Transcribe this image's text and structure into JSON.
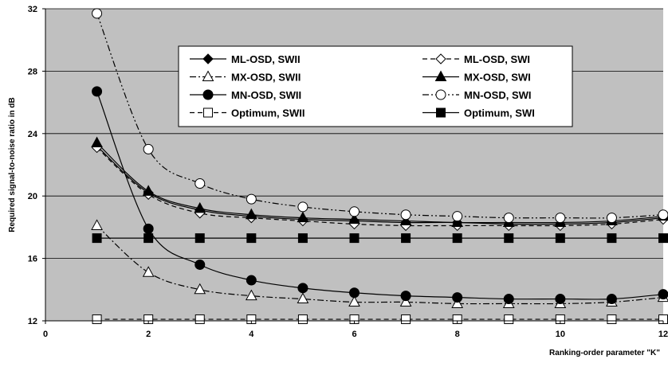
{
  "chart_data": {
    "type": "line",
    "xlabel": "Ranking-order parameter \"K\"",
    "ylabel": "Required signal-to-noise ratio in dB",
    "xlim": [
      0,
      12
    ],
    "ylim": [
      12,
      32
    ],
    "x_ticks": [
      0,
      2,
      4,
      6,
      8,
      10,
      12
    ],
    "y_ticks": [
      12,
      16,
      20,
      24,
      28,
      32
    ],
    "grid": "horizontal",
    "plot_background": "#c0c0c0",
    "legend_position": "top-center",
    "x": [
      1,
      2,
      3,
      4,
      5,
      6,
      7,
      8,
      9,
      10,
      11,
      12
    ],
    "series": [
      {
        "name": "ML-OSD, SWII",
        "marker": "diamond",
        "fill": "filled",
        "dash": "solid",
        "values": [
          23.2,
          20.2,
          19.1,
          18.7,
          18.5,
          18.4,
          18.3,
          18.3,
          18.2,
          18.2,
          18.3,
          18.6
        ]
      },
      {
        "name": "ML-OSD, SWI",
        "marker": "diamond",
        "fill": "open",
        "dash": "dashed",
        "values": [
          23.1,
          20.1,
          18.9,
          18.6,
          18.4,
          18.2,
          18.1,
          18.1,
          18.1,
          18.1,
          18.2,
          18.5
        ]
      },
      {
        "name": "MX-OSD, SWII",
        "marker": "triangle",
        "fill": "open",
        "dash": "dashdot",
        "values": [
          18.1,
          15.1,
          14.0,
          13.6,
          13.4,
          13.2,
          13.2,
          13.1,
          13.1,
          13.1,
          13.2,
          13.5
        ]
      },
      {
        "name": "MX-OSD, SWI",
        "marker": "triangle",
        "fill": "filled",
        "dash": "solid",
        "values": [
          23.4,
          20.3,
          19.2,
          18.8,
          18.6,
          18.5,
          18.4,
          18.3,
          18.3,
          18.3,
          18.4,
          18.7
        ]
      },
      {
        "name": "MN-OSD, SWII",
        "marker": "circle",
        "fill": "filled",
        "dash": "solid",
        "values": [
          26.7,
          17.9,
          15.6,
          14.6,
          14.1,
          13.8,
          13.6,
          13.5,
          13.4,
          13.4,
          13.4,
          13.7
        ]
      },
      {
        "name": "MN-OSD, SWI",
        "marker": "circle",
        "fill": "open",
        "dash": "dashdotdot",
        "values": [
          31.7,
          23.0,
          20.8,
          19.8,
          19.3,
          19.0,
          18.8,
          18.7,
          18.6,
          18.6,
          18.6,
          18.8
        ]
      },
      {
        "name": "Optimum, SWII",
        "marker": "square",
        "fill": "open",
        "dash": "dashed",
        "values": [
          12.1,
          12.1,
          12.1,
          12.1,
          12.1,
          12.1,
          12.1,
          12.1,
          12.1,
          12.1,
          12.1,
          12.1
        ]
      },
      {
        "name": "Optimum, SWI",
        "marker": "square",
        "fill": "filled",
        "dash": "solid",
        "values": [
          17.3,
          17.3,
          17.3,
          17.3,
          17.3,
          17.3,
          17.3,
          17.3,
          17.3,
          17.3,
          17.3,
          17.3
        ]
      }
    ],
    "extra_points": [
      {
        "series": "MX-OSD, SWI",
        "x": 12,
        "y": 13.3,
        "marker": "none",
        "dash": "solid"
      }
    ]
  }
}
